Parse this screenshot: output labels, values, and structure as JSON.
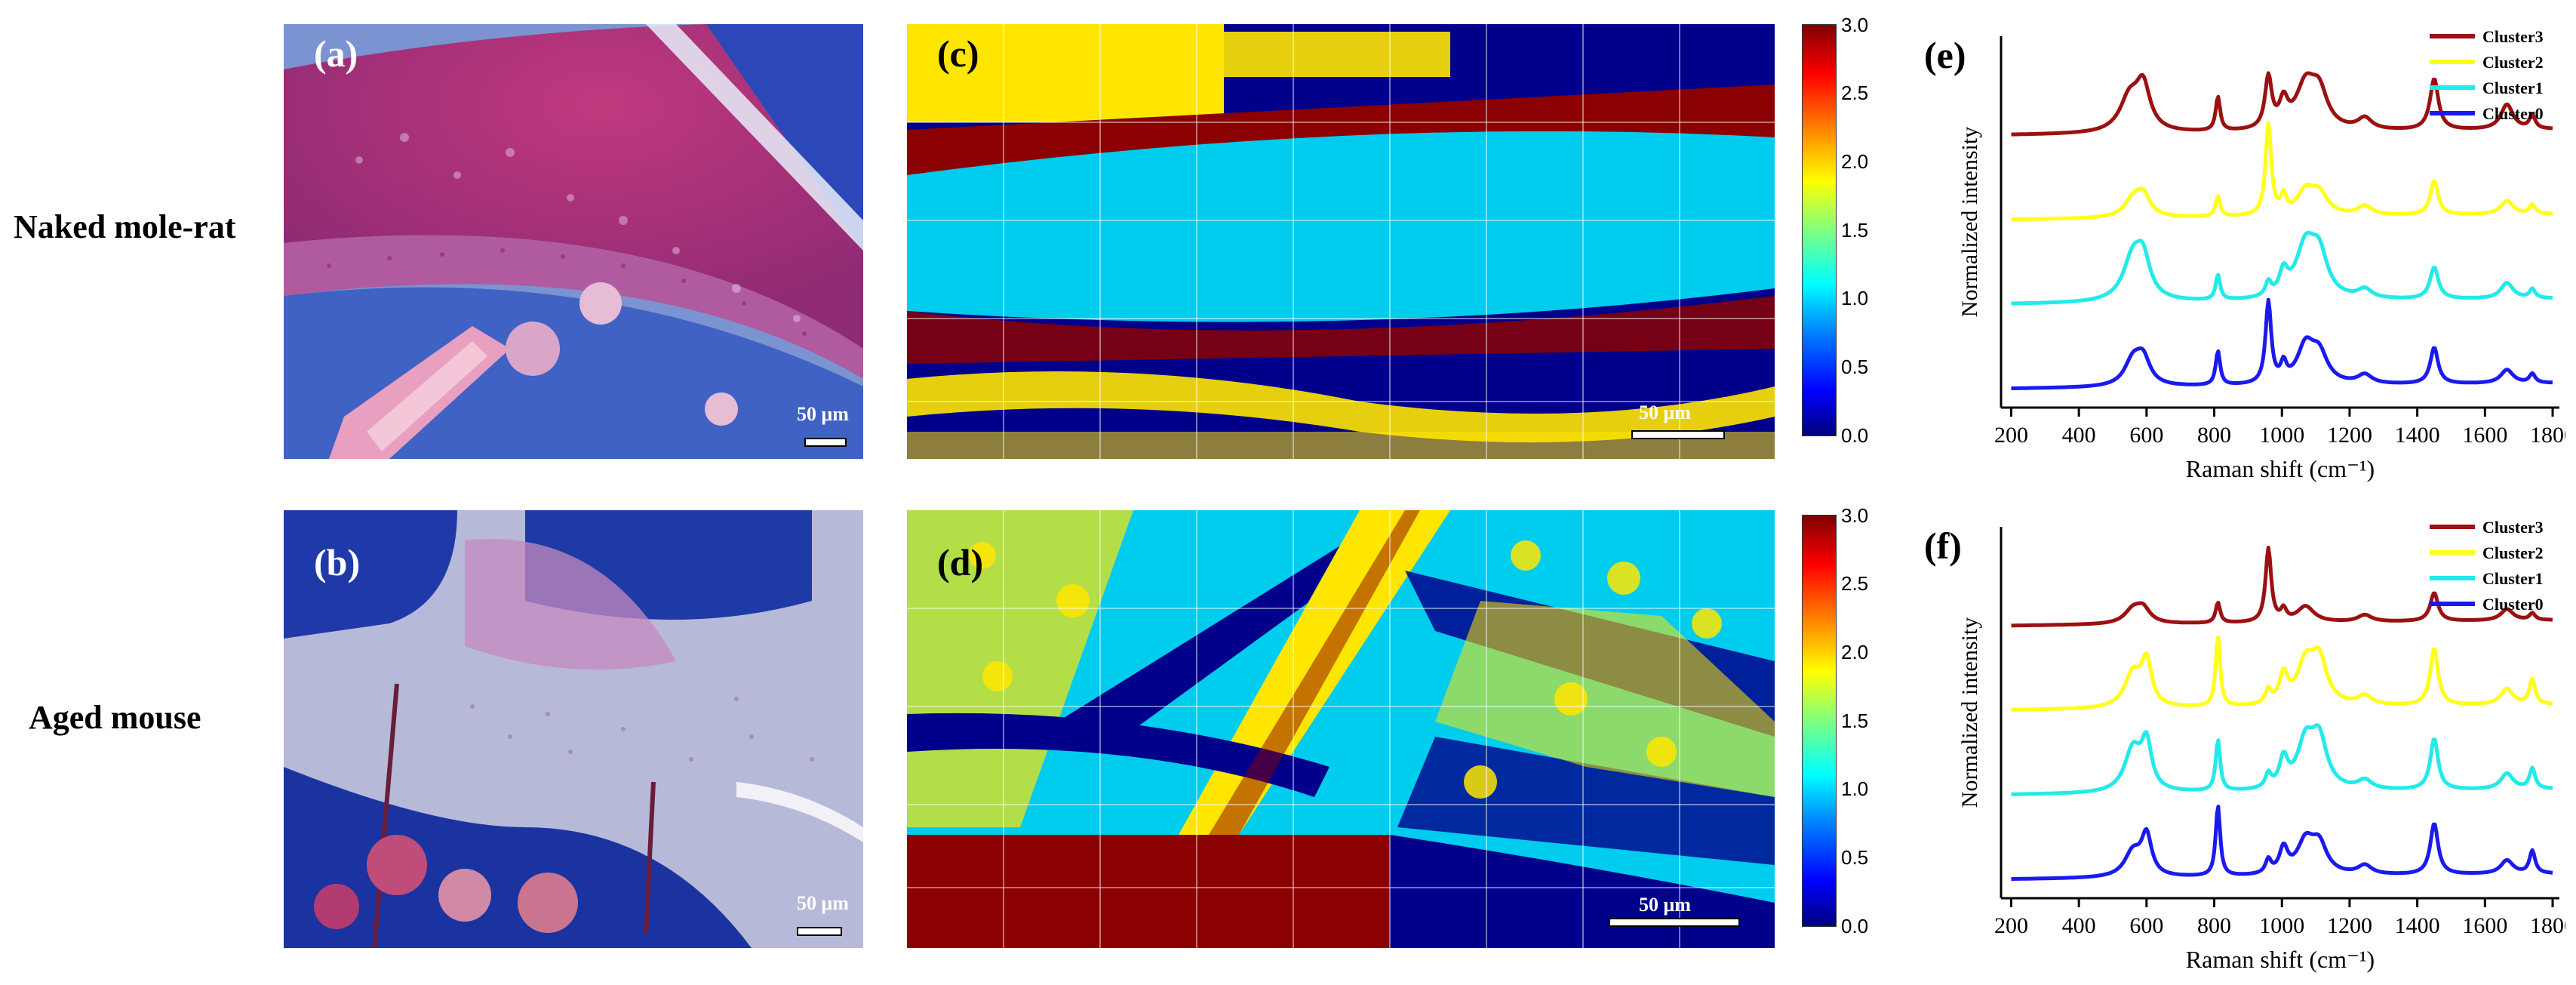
{
  "row_labels": [
    "Naked mole-rat",
    "Aged mouse"
  ],
  "panel_labels": {
    "a": "(a)",
    "b": "(b)",
    "c": "(c)",
    "d": "(d)",
    "e": "(e)",
    "f": "(f)"
  },
  "scale_bar": "50 μm",
  "colorbar": {
    "min": 0.0,
    "max": 3.0,
    "ticks": [
      "3.0",
      "2.5",
      "2.0",
      "1.5",
      "1.0",
      "0.5",
      "0.0"
    ]
  },
  "chart_data": [
    {
      "type": "line",
      "panel": "(e)",
      "xlabel": "Raman shift (cm⁻¹)",
      "ylabel": "Normalized intensity",
      "xlim": [
        170,
        1820
      ],
      "xticks": [
        "200",
        "400",
        "600",
        "800",
        "1000",
        "1200",
        "1400",
        "1600",
        "1800"
      ],
      "legend_position": "top-right",
      "series": [
        {
          "name": "Cluster3",
          "color": "#9b1111",
          "offset": 3,
          "peaks": [
            [
              550,
              0.3,
              35
            ],
            [
              590,
              0.38,
              25
            ],
            [
              811,
              0.3,
              8
            ],
            [
              960,
              0.45,
              12
            ],
            [
              1005,
              0.22,
              15
            ],
            [
              1070,
              0.38,
              35
            ],
            [
              1110,
              0.3,
              30
            ],
            [
              1245,
              0.1,
              25
            ],
            [
              1450,
              0.45,
              15
            ],
            [
              1665,
              0.22,
              22
            ],
            [
              1740,
              0.12,
              10
            ]
          ]
        },
        {
          "name": "Cluster2",
          "color": "#ffff1a",
          "offset": 2,
          "peaks": [
            [
              560,
              0.15,
              30
            ],
            [
              590,
              0.18,
              25
            ],
            [
              811,
              0.18,
              8
            ],
            [
              960,
              0.8,
              10
            ],
            [
              1005,
              0.15,
              10
            ],
            [
              1070,
              0.2,
              30
            ],
            [
              1110,
              0.18,
              30
            ],
            [
              1245,
              0.08,
              25
            ],
            [
              1450,
              0.3,
              14
            ],
            [
              1665,
              0.12,
              22
            ],
            [
              1740,
              0.08,
              10
            ]
          ]
        },
        {
          "name": "Cluster1",
          "color": "#22eaea",
          "offset": 1,
          "peaks": [
            [
              560,
              0.38,
              35
            ],
            [
              590,
              0.3,
              25
            ],
            [
              811,
              0.22,
              8
            ],
            [
              960,
              0.12,
              10
            ],
            [
              1005,
              0.2,
              15
            ],
            [
              1070,
              0.45,
              35
            ],
            [
              1110,
              0.35,
              30
            ],
            [
              1245,
              0.08,
              25
            ],
            [
              1450,
              0.28,
              15
            ],
            [
              1665,
              0.14,
              22
            ],
            [
              1740,
              0.08,
              10
            ]
          ]
        },
        {
          "name": "Cluster0",
          "color": "#1a1aee",
          "offset": 0,
          "peaks": [
            [
              560,
              0.22,
              30
            ],
            [
              590,
              0.22,
              25
            ],
            [
              811,
              0.3,
              8
            ],
            [
              960,
              0.72,
              10
            ],
            [
              1005,
              0.15,
              10
            ],
            [
              1070,
              0.32,
              30
            ],
            [
              1110,
              0.25,
              30
            ],
            [
              1245,
              0.08,
              25
            ],
            [
              1450,
              0.32,
              14
            ],
            [
              1665,
              0.12,
              22
            ],
            [
              1740,
              0.08,
              10
            ]
          ]
        }
      ]
    },
    {
      "type": "line",
      "panel": "(f)",
      "xlabel": "Raman shift (cm⁻¹)",
      "ylabel": "Normalized intensity",
      "xlim": [
        170,
        1820
      ],
      "xticks": [
        "200",
        "400",
        "600",
        "800",
        "1000",
        "1200",
        "1400",
        "1600",
        "1800"
      ],
      "legend_position": "top-right",
      "series": [
        {
          "name": "Cluster3",
          "color": "#9b1111",
          "offset": 3,
          "peaks": [
            [
              560,
              0.12,
              30
            ],
            [
              590,
              0.12,
              25
            ],
            [
              811,
              0.18,
              8
            ],
            [
              960,
              0.65,
              10
            ],
            [
              1005,
              0.1,
              10
            ],
            [
              1070,
              0.14,
              30
            ],
            [
              1245,
              0.06,
              25
            ],
            [
              1450,
              0.25,
              14
            ],
            [
              1665,
              0.1,
              22
            ],
            [
              1740,
              0.06,
              10
            ]
          ]
        },
        {
          "name": "Cluster2",
          "color": "#ffff1a",
          "offset": 2,
          "peaks": [
            [
              560,
              0.3,
              30
            ],
            [
              600,
              0.38,
              18
            ],
            [
              811,
              0.62,
              8
            ],
            [
              960,
              0.12,
              10
            ],
            [
              1005,
              0.25,
              15
            ],
            [
              1070,
              0.35,
              30
            ],
            [
              1110,
              0.38,
              28
            ],
            [
              1245,
              0.08,
              25
            ],
            [
              1450,
              0.5,
              14
            ],
            [
              1665,
              0.14,
              22
            ],
            [
              1740,
              0.22,
              10
            ]
          ]
        },
        {
          "name": "Cluster1",
          "color": "#22eaea",
          "offset": 1,
          "peaks": [
            [
              560,
              0.38,
              30
            ],
            [
              600,
              0.4,
              18
            ],
            [
              811,
              0.45,
              8
            ],
            [
              960,
              0.12,
              10
            ],
            [
              1005,
              0.25,
              15
            ],
            [
              1070,
              0.4,
              30
            ],
            [
              1110,
              0.42,
              28
            ],
            [
              1245,
              0.08,
              25
            ],
            [
              1450,
              0.45,
              14
            ],
            [
              1665,
              0.14,
              22
            ],
            [
              1740,
              0.18,
              10
            ]
          ]
        },
        {
          "name": "Cluster0",
          "color": "#1a1aee",
          "offset": 0,
          "peaks": [
            [
              560,
              0.22,
              30
            ],
            [
              600,
              0.35,
              18
            ],
            [
              811,
              0.62,
              8
            ],
            [
              960,
              0.12,
              10
            ],
            [
              1005,
              0.22,
              15
            ],
            [
              1070,
              0.28,
              30
            ],
            [
              1110,
              0.25,
              28
            ],
            [
              1245,
              0.08,
              25
            ],
            [
              1450,
              0.45,
              14
            ],
            [
              1665,
              0.12,
              22
            ],
            [
              1740,
              0.2,
              10
            ]
          ]
        }
      ]
    }
  ]
}
